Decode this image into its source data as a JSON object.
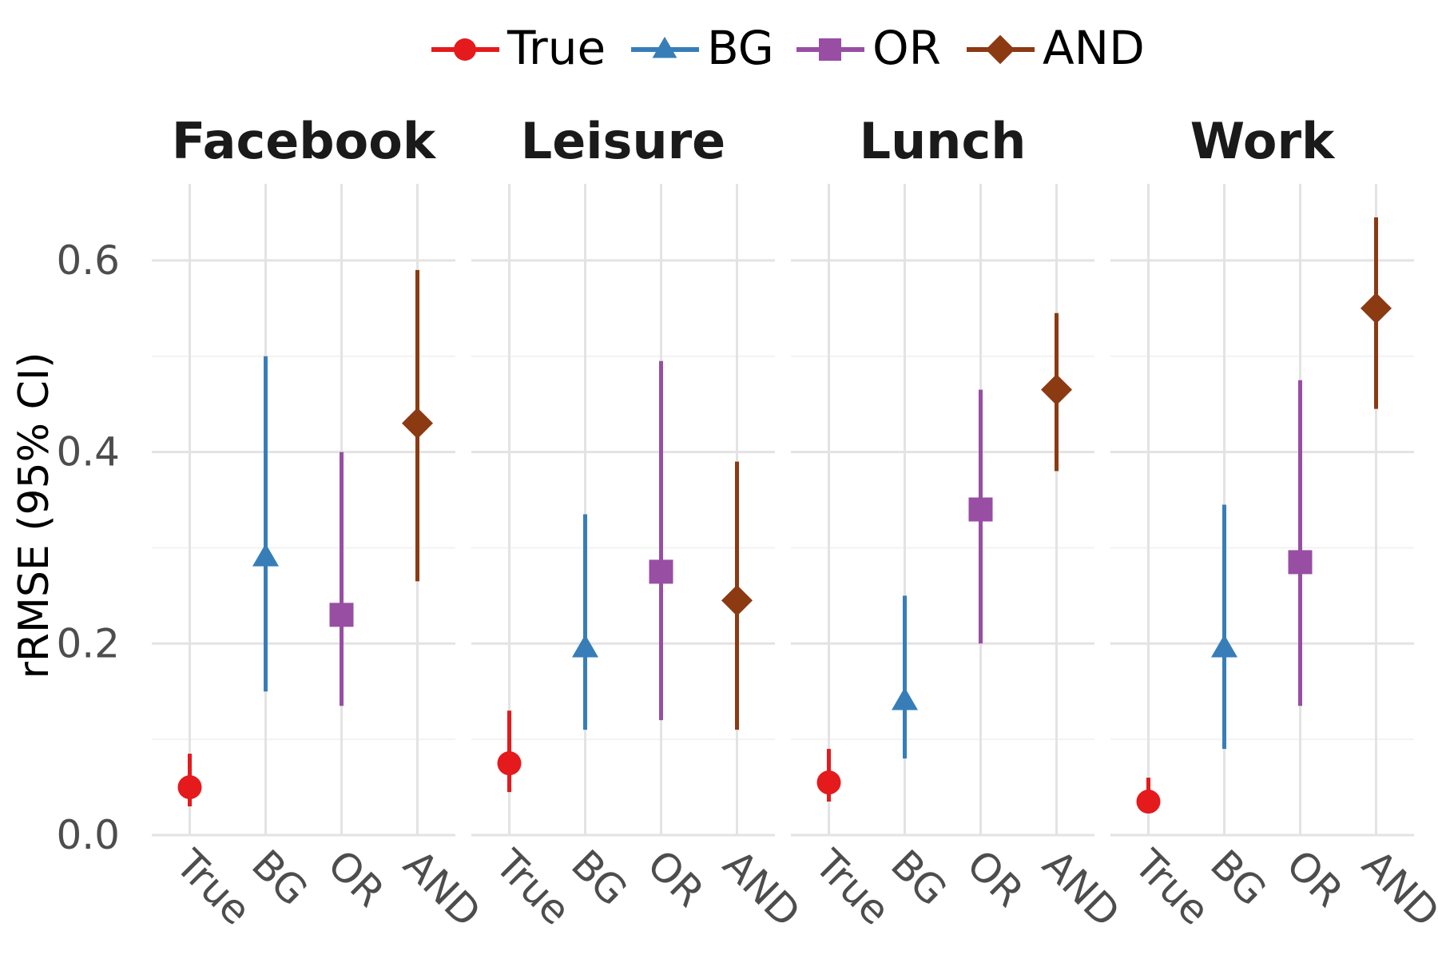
{
  "chart_data": {
    "type": "scatter",
    "subtype": "pointrange",
    "ylabel": "rRMSE (95% CI)",
    "ylim": [
      0,
      0.68
    ],
    "y_ticks": [
      "0.0",
      "0.2",
      "0.4",
      "0.6"
    ],
    "y_tick_values": [
      0,
      0.2,
      0.4,
      0.6
    ],
    "categories": [
      "True",
      "BG",
      "OR",
      "AND"
    ],
    "legend": {
      "position": "top",
      "entries": [
        {
          "label": "True",
          "color": "#e41a1c",
          "shape": "circle"
        },
        {
          "label": "BG",
          "color": "#377eb8",
          "shape": "triangle"
        },
        {
          "label": "OR",
          "color": "#984ea3",
          "shape": "square"
        },
        {
          "label": "AND",
          "color": "#8b3a12",
          "shape": "diamond"
        }
      ]
    },
    "grid": true,
    "panels": [
      {
        "title": "Facebook",
        "points": [
          {
            "method": "True",
            "value": 0.05,
            "lower": 0.03,
            "upper": 0.085
          },
          {
            "method": "BG",
            "value": 0.29,
            "lower": 0.15,
            "upper": 0.5
          },
          {
            "method": "OR",
            "value": 0.23,
            "lower": 0.135,
            "upper": 0.4
          },
          {
            "method": "AND",
            "value": 0.43,
            "lower": 0.265,
            "upper": 0.59
          }
        ]
      },
      {
        "title": "Leisure",
        "points": [
          {
            "method": "True",
            "value": 0.075,
            "lower": 0.045,
            "upper": 0.13
          },
          {
            "method": "BG",
            "value": 0.195,
            "lower": 0.11,
            "upper": 0.335
          },
          {
            "method": "OR",
            "value": 0.275,
            "lower": 0.12,
            "upper": 0.495
          },
          {
            "method": "AND",
            "value": 0.245,
            "lower": 0.11,
            "upper": 0.39
          }
        ]
      },
      {
        "title": "Lunch",
        "points": [
          {
            "method": "True",
            "value": 0.055,
            "lower": 0.035,
            "upper": 0.09
          },
          {
            "method": "BG",
            "value": 0.14,
            "lower": 0.08,
            "upper": 0.25
          },
          {
            "method": "OR",
            "value": 0.34,
            "lower": 0.2,
            "upper": 0.465
          },
          {
            "method": "AND",
            "value": 0.465,
            "lower": 0.38,
            "upper": 0.545
          }
        ]
      },
      {
        "title": "Work",
        "points": [
          {
            "method": "True",
            "value": 0.035,
            "lower": 0.03,
            "upper": 0.06
          },
          {
            "method": "BG",
            "value": 0.195,
            "lower": 0.09,
            "upper": 0.345
          },
          {
            "method": "OR",
            "value": 0.285,
            "lower": 0.135,
            "upper": 0.475
          },
          {
            "method": "AND",
            "value": 0.55,
            "lower": 0.445,
            "upper": 0.645
          }
        ]
      }
    ]
  }
}
